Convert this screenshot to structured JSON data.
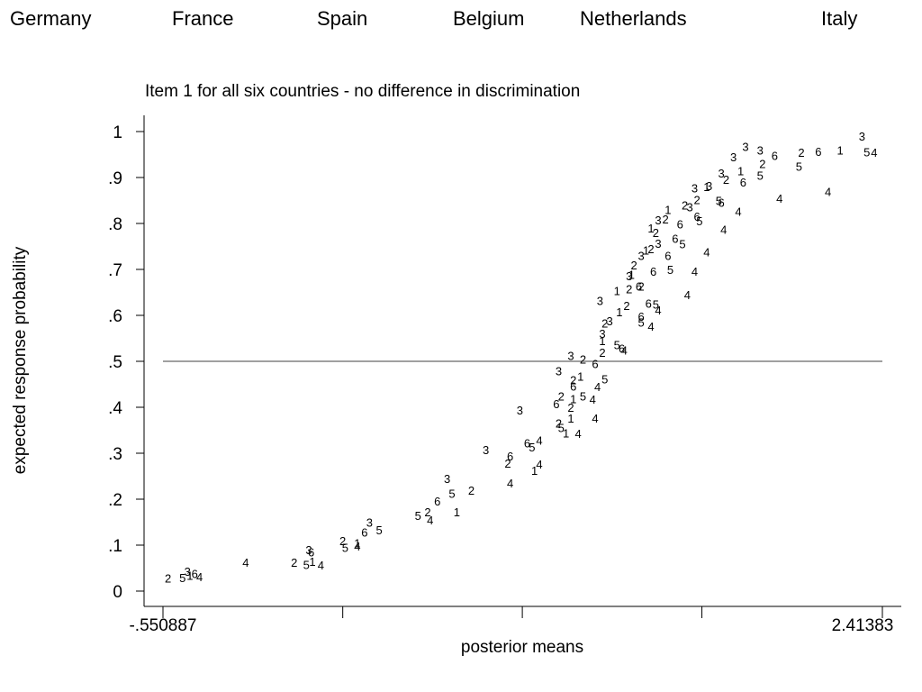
{
  "countries": [
    "Germany",
    "France",
    "Spain",
    "Belgium",
    "Netherlands",
    "Italy"
  ],
  "chart_data": {
    "type": "scatter",
    "title": "Item 1 for all six countries - no difference in discrimination",
    "xlabel": "posterior means",
    "ylabel": "expected response probability",
    "xlim": [
      -0.550887,
      2.41383
    ],
    "ylim": [
      0,
      1
    ],
    "x_tick_labels": [
      "-.550887",
      "2.41383"
    ],
    "x_tick_values": [
      -0.550887,
      0.19,
      0.93,
      1.67,
      2.41383
    ],
    "y_ticks": [
      0,
      0.1,
      0.2,
      0.3,
      0.4,
      0.5,
      0.6,
      0.7,
      0.8,
      0.9,
      1
    ],
    "y_tick_labels": [
      "0",
      ".1",
      ".2",
      ".3",
      ".4",
      ".5",
      ".6",
      ".7",
      ".8",
      ".9",
      "1"
    ],
    "reference_line_y": 0.5,
    "grid": false,
    "marker_labels": [
      "1",
      "2",
      "3",
      "4",
      "5",
      "6"
    ],
    "series": [
      {
        "marker": "1",
        "points": [
          [
            -0.44,
            0.034
          ],
          [
            0.065,
            0.065
          ],
          [
            0.25,
            0.105
          ],
          [
            0.66,
            0.173
          ],
          [
            0.98,
            0.263
          ],
          [
            1.11,
            0.344
          ],
          [
            1.13,
            0.376
          ],
          [
            1.14,
            0.419
          ],
          [
            1.17,
            0.468
          ],
          [
            1.26,
            0.545
          ],
          [
            1.33,
            0.608
          ],
          [
            1.32,
            0.654
          ],
          [
            1.38,
            0.689
          ],
          [
            1.44,
            0.742
          ],
          [
            1.46,
            0.79
          ],
          [
            1.53,
            0.83
          ],
          [
            1.69,
            0.88
          ],
          [
            1.83,
            0.915
          ],
          [
            2.24,
            0.96
          ]
        ]
      },
      {
        "marker": "2",
        "points": [
          [
            -0.53,
            0.028
          ],
          [
            -0.01,
            0.063
          ],
          [
            0.19,
            0.11
          ],
          [
            0.54,
            0.173
          ],
          [
            0.72,
            0.22
          ],
          [
            0.87,
            0.278
          ],
          [
            1.08,
            0.366
          ],
          [
            1.13,
            0.4
          ],
          [
            1.09,
            0.425
          ],
          [
            1.14,
            0.46
          ],
          [
            1.18,
            0.505
          ],
          [
            1.26,
            0.52
          ],
          [
            1.27,
            0.583
          ],
          [
            1.36,
            0.622
          ],
          [
            1.37,
            0.658
          ],
          [
            1.42,
            0.664
          ],
          [
            1.39,
            0.71
          ],
          [
            1.46,
            0.745
          ],
          [
            1.48,
            0.78
          ],
          [
            1.52,
            0.81
          ],
          [
            1.6,
            0.84
          ],
          [
            1.65,
            0.852
          ],
          [
            1.77,
            0.896
          ],
          [
            1.92,
            0.93
          ],
          [
            2.08,
            0.955
          ]
        ]
      },
      {
        "marker": "3",
        "points": [
          [
            -0.45,
            0.043
          ],
          [
            0.05,
            0.09
          ],
          [
            0.3,
            0.15
          ],
          [
            0.62,
            0.245
          ],
          [
            0.78,
            0.308
          ],
          [
            0.92,
            0.394
          ],
          [
            1.08,
            0.479
          ],
          [
            1.13,
            0.513
          ],
          [
            1.26,
            0.561
          ],
          [
            1.29,
            0.588
          ],
          [
            1.25,
            0.632
          ],
          [
            1.37,
            0.686
          ],
          [
            1.42,
            0.73
          ],
          [
            1.49,
            0.757
          ],
          [
            1.49,
            0.808
          ],
          [
            1.62,
            0.836
          ],
          [
            1.64,
            0.877
          ],
          [
            1.7,
            0.882
          ],
          [
            1.75,
            0.91
          ],
          [
            1.8,
            0.945
          ],
          [
            1.85,
            0.968
          ],
          [
            1.91,
            0.96
          ],
          [
            2.33,
            0.99
          ]
        ]
      },
      {
        "marker": "4",
        "points": [
          [
            -0.4,
            0.031
          ],
          [
            -0.21,
            0.063
          ],
          [
            0.1,
            0.057
          ],
          [
            0.25,
            0.098
          ],
          [
            0.55,
            0.155
          ],
          [
            0.88,
            0.235
          ],
          [
            1.0,
            0.276
          ],
          [
            1.0,
            0.328
          ],
          [
            1.16,
            0.343
          ],
          [
            1.23,
            0.376
          ],
          [
            1.22,
            0.418
          ],
          [
            1.24,
            0.445
          ],
          [
            1.35,
            0.525
          ],
          [
            1.46,
            0.576
          ],
          [
            1.49,
            0.612
          ],
          [
            1.61,
            0.645
          ],
          [
            1.64,
            0.696
          ],
          [
            1.69,
            0.738
          ],
          [
            1.76,
            0.787
          ],
          [
            1.82,
            0.826
          ],
          [
            1.99,
            0.855
          ],
          [
            2.19,
            0.87
          ],
          [
            2.38,
            0.955
          ]
        ]
      },
      {
        "marker": "5",
        "points": [
          [
            -0.47,
            0.029
          ],
          [
            0.04,
            0.058
          ],
          [
            0.2,
            0.095
          ],
          [
            0.34,
            0.133
          ],
          [
            0.5,
            0.165
          ],
          [
            0.64,
            0.213
          ],
          [
            0.97,
            0.314
          ],
          [
            1.09,
            0.356
          ],
          [
            1.18,
            0.425
          ],
          [
            1.27,
            0.462
          ],
          [
            1.32,
            0.536
          ],
          [
            1.42,
            0.585
          ],
          [
            1.48,
            0.625
          ],
          [
            1.54,
            0.7
          ],
          [
            1.59,
            0.756
          ],
          [
            1.66,
            0.806
          ],
          [
            1.74,
            0.85
          ],
          [
            1.91,
            0.905
          ],
          [
            2.07,
            0.925
          ],
          [
            2.35,
            0.956
          ]
        ]
      },
      {
        "marker": "6",
        "points": [
          [
            -0.42,
            0.038
          ],
          [
            0.06,
            0.085
          ],
          [
            0.28,
            0.128
          ],
          [
            0.58,
            0.196
          ],
          [
            0.88,
            0.294
          ],
          [
            0.95,
            0.323
          ],
          [
            1.07,
            0.408
          ],
          [
            1.14,
            0.446
          ],
          [
            1.23,
            0.495
          ],
          [
            1.34,
            0.528
          ],
          [
            1.42,
            0.598
          ],
          [
            1.45,
            0.626
          ],
          [
            1.41,
            0.664
          ],
          [
            1.47,
            0.696
          ],
          [
            1.53,
            0.73
          ],
          [
            1.56,
            0.768
          ],
          [
            1.58,
            0.799
          ],
          [
            1.65,
            0.816
          ],
          [
            1.75,
            0.846
          ],
          [
            1.84,
            0.89
          ],
          [
            1.97,
            0.948
          ],
          [
            2.15,
            0.957
          ]
        ]
      }
    ]
  }
}
